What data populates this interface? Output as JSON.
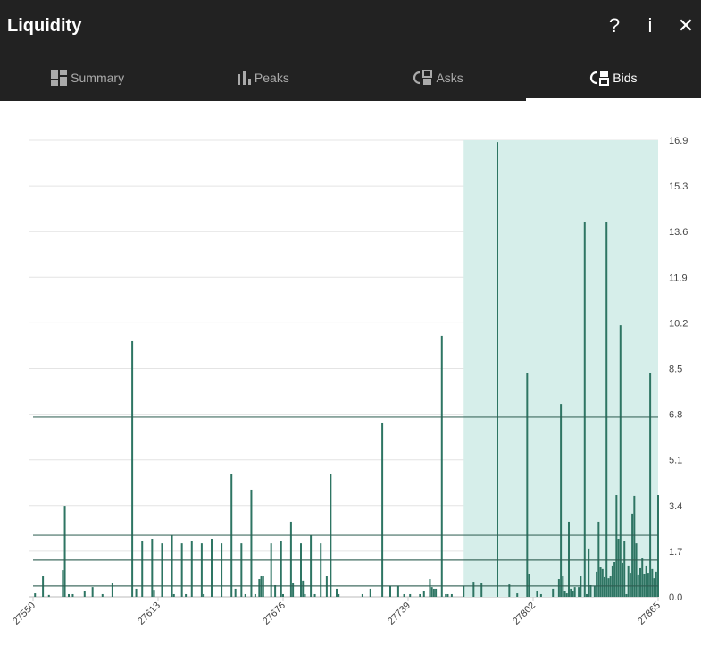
{
  "header": {
    "title": "Liquidity",
    "help_icon": "?",
    "info_icon": "i",
    "close_icon": "✕"
  },
  "tabs": [
    {
      "label": "Summary",
      "icon": "dashboard-icon",
      "active": false
    },
    {
      "label": "Peaks",
      "icon": "bar-chart-icon",
      "active": false
    },
    {
      "label": "Asks",
      "icon": "asks-icon",
      "active": false
    },
    {
      "label": "Bids",
      "icon": "bids-icon",
      "active": true
    }
  ],
  "chart_data": {
    "type": "bar",
    "xlim": [
      27550,
      27865
    ],
    "ylim": [
      0,
      16.9
    ],
    "x_ticks": [
      "27550",
      "27613",
      "27676",
      "27739",
      "27802",
      "27865"
    ],
    "y_ticks": [
      "0.0",
      "1.7",
      "3.4",
      "5.1",
      "6.8",
      "8.5",
      "10.2",
      "11.9",
      "13.6",
      "15.3",
      "16.9"
    ],
    "grid": true,
    "highlight_range": [
      27767,
      27865
    ],
    "colors": {
      "bar": "#2e7563",
      "highlight": "#d6eeea",
      "level_line": "#2e5e52"
    },
    "level_lines": [
      6.65,
      2.28,
      1.36,
      0.4
    ],
    "bars": [
      [
        27551,
        0.13
      ],
      [
        27555,
        0.76
      ],
      [
        27558,
        0.07
      ],
      [
        27565,
        0.99
      ],
      [
        27566,
        3.37
      ],
      [
        27568,
        0.1
      ],
      [
        27570,
        0.1
      ],
      [
        27576,
        0.2
      ],
      [
        27580,
        0.36
      ],
      [
        27585,
        0.1
      ],
      [
        27590,
        0.5
      ],
      [
        27600,
        9.46
      ],
      [
        27602,
        0.3
      ],
      [
        27605,
        2.08
      ],
      [
        27610,
        2.15
      ],
      [
        27611,
        0.26
      ],
      [
        27615,
        1.98
      ],
      [
        27620,
        2.28
      ],
      [
        27621,
        0.1
      ],
      [
        27625,
        1.98
      ],
      [
        27627,
        0.1
      ],
      [
        27630,
        2.08
      ],
      [
        27635,
        1.98
      ],
      [
        27636,
        0.1
      ],
      [
        27640,
        2.15
      ],
      [
        27645,
        1.98
      ],
      [
        27650,
        4.56
      ],
      [
        27652,
        0.3
      ],
      [
        27655,
        1.98
      ],
      [
        27657,
        0.1
      ],
      [
        27660,
        3.97
      ],
      [
        27662,
        0.1
      ],
      [
        27664,
        0.66
      ],
      [
        27665,
        0.76
      ],
      [
        27666,
        0.76
      ],
      [
        27670,
        1.98
      ],
      [
        27672,
        0.43
      ],
      [
        27675,
        2.08
      ],
      [
        27676,
        0.1
      ],
      [
        27680,
        2.78
      ],
      [
        27681,
        0.5
      ],
      [
        27685,
        1.98
      ],
      [
        27686,
        0.6
      ],
      [
        27687,
        0.1
      ],
      [
        27690,
        2.28
      ],
      [
        27692,
        0.1
      ],
      [
        27695,
        1.98
      ],
      [
        27698,
        0.76
      ],
      [
        27700,
        4.56
      ],
      [
        27703,
        0.3
      ],
      [
        27704,
        0.1
      ],
      [
        27716,
        0.1
      ],
      [
        27720,
        0.3
      ],
      [
        27726,
        6.45
      ],
      [
        27730,
        0.4
      ],
      [
        27734,
        0.4
      ],
      [
        27737,
        0.1
      ],
      [
        27740,
        0.1
      ],
      [
        27745,
        0.1
      ],
      [
        27747,
        0.2
      ],
      [
        27750,
        0.66
      ],
      [
        27751,
        0.36
      ],
      [
        27752,
        0.3
      ],
      [
        27753,
        0.3
      ],
      [
        27756,
        9.66
      ],
      [
        27758,
        0.1
      ],
      [
        27759,
        0.1
      ],
      [
        27761,
        0.1
      ],
      [
        27767,
        0.4
      ],
      [
        27772,
        0.56
      ],
      [
        27776,
        0.5
      ],
      [
        27784,
        16.83
      ],
      [
        27790,
        0.46
      ],
      [
        27794,
        0.13
      ],
      [
        27799,
        8.27
      ],
      [
        27800,
        0.86
      ],
      [
        27804,
        0.23
      ],
      [
        27806,
        0.1
      ],
      [
        27812,
        0.3
      ],
      [
        27815,
        0.66
      ],
      [
        27816,
        7.14
      ],
      [
        27817,
        0.76
      ],
      [
        27818,
        0.2
      ],
      [
        27819,
        0.13
      ],
      [
        27820,
        2.78
      ],
      [
        27821,
        0.3
      ],
      [
        27822,
        0.23
      ],
      [
        27823,
        0.36
      ],
      [
        27825,
        0.36
      ],
      [
        27826,
        0.76
      ],
      [
        27828,
        13.86
      ],
      [
        27829,
        0.1
      ],
      [
        27830,
        1.79
      ],
      [
        27831,
        0.43
      ],
      [
        27833,
        0.4
      ],
      [
        27834,
        0.93
      ],
      [
        27835,
        2.78
      ],
      [
        27836,
        1.09
      ],
      [
        27837,
        1.03
      ],
      [
        27838,
        0.73
      ],
      [
        27839,
        13.86
      ],
      [
        27840,
        0.69
      ],
      [
        27841,
        0.76
      ],
      [
        27842,
        1.16
      ],
      [
        27843,
        1.29
      ],
      [
        27844,
        3.77
      ],
      [
        27845,
        2.15
      ],
      [
        27846,
        10.05
      ],
      [
        27847,
        1.26
      ],
      [
        27848,
        2.08
      ],
      [
        27849,
        0.1
      ],
      [
        27850,
        1.16
      ],
      [
        27851,
        0.89
      ],
      [
        27852,
        3.08
      ],
      [
        27853,
        3.74
      ],
      [
        27854,
        1.98
      ],
      [
        27855,
        0.83
      ],
      [
        27856,
        1.06
      ],
      [
        27857,
        1.42
      ],
      [
        27858,
        0.86
      ],
      [
        27859,
        1.16
      ],
      [
        27860,
        0.89
      ],
      [
        27861,
        8.27
      ],
      [
        27862,
        1.03
      ],
      [
        27863,
        0.69
      ],
      [
        27864,
        0.93
      ],
      [
        27865,
        3.77
      ]
    ]
  }
}
